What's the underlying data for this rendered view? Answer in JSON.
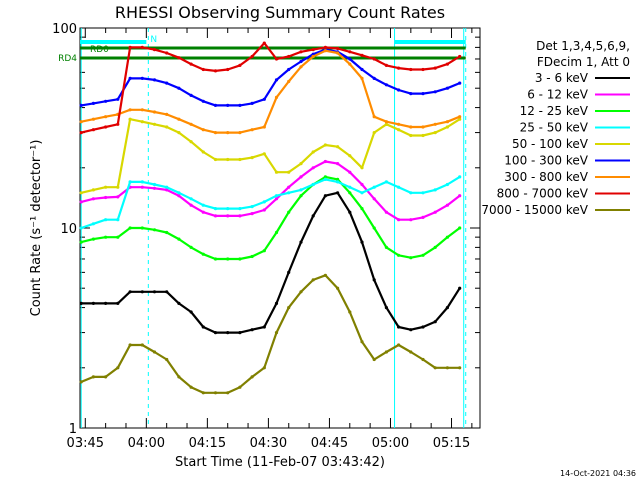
{
  "chart_data": {
    "type": "line",
    "title": "RHESSI Observing Summary Count Rates",
    "xlabel": "Start Time (11-Feb-07 03:43:42)",
    "ylabel": "Count Rate (s⁻¹ detector⁻¹)",
    "yscale": "log",
    "ylim": [
      1,
      100
    ],
    "xlim": [
      "03:43:42",
      "05:22:00"
    ],
    "x_ticks": [
      "03:45",
      "04:00",
      "04:15",
      "04:30",
      "04:45",
      "05:00",
      "05:15"
    ],
    "y_ticks": [
      "1",
      "10",
      "100"
    ],
    "grid": false,
    "legend_position": "right",
    "legend_header": [
      "Det 1,3,4,5,6,9,",
      "FDecim 1, Att 0"
    ],
    "timestamp": "14-Oct-2021 04:36",
    "x": [
      "03:44",
      "03:47",
      "03:50",
      "03:53",
      "03:56",
      "03:59",
      "04:02",
      "04:05",
      "04:08",
      "04:11",
      "04:14",
      "04:17",
      "04:20",
      "04:23",
      "04:26",
      "04:29",
      "04:32",
      "04:35",
      "04:38",
      "04:41",
      "04:44",
      "04:47",
      "04:50",
      "04:53",
      "04:56",
      "04:59",
      "05:02",
      "05:05",
      "05:08",
      "05:11",
      "05:14",
      "05:17"
    ],
    "series": [
      {
        "name": "3 - 6 keV",
        "color": "#000000",
        "values": [
          4.2,
          4.2,
          4.2,
          4.2,
          4.8,
          4.8,
          4.8,
          4.8,
          4.2,
          3.8,
          3.2,
          3.0,
          3.0,
          3.0,
          3.1,
          3.2,
          4.2,
          6.0,
          8.5,
          11.5,
          14.5,
          15.0,
          12.0,
          8.5,
          5.5,
          4.0,
          3.2,
          3.1,
          3.2,
          3.4,
          4.0,
          5.0
        ]
      },
      {
        "name": "6 - 12 keV",
        "color": "#ff00ff",
        "values": [
          13.5,
          14.0,
          14.2,
          14.3,
          16.0,
          16.0,
          15.8,
          15.5,
          14.5,
          13.0,
          12.0,
          11.5,
          11.5,
          11.5,
          11.8,
          12.3,
          14.0,
          16.0,
          18.0,
          20.0,
          21.5,
          21.0,
          19.0,
          16.5,
          14.0,
          12.0,
          11.0,
          11.0,
          11.3,
          12.0,
          13.0,
          14.5
        ]
      },
      {
        "name": "12 - 25 keV",
        "color": "#00ff00",
        "values": [
          8.5,
          8.8,
          9.0,
          9.0,
          10.0,
          10.0,
          9.8,
          9.5,
          8.8,
          8.0,
          7.4,
          7.0,
          7.0,
          7.0,
          7.2,
          7.7,
          9.5,
          12.0,
          14.5,
          16.5,
          18.0,
          17.5,
          15.0,
          12.5,
          10.0,
          8.0,
          7.3,
          7.1,
          7.3,
          8.0,
          9.0,
          10.0
        ]
      },
      {
        "name": "25 - 50 keV",
        "color": "#00ffff",
        "values": [
          10.0,
          10.5,
          11.0,
          11.0,
          17.0,
          17.0,
          16.5,
          16.0,
          15.0,
          14.0,
          13.0,
          12.5,
          12.5,
          12.5,
          12.8,
          13.5,
          14.5,
          15.0,
          15.5,
          16.5,
          17.5,
          17.0,
          16.0,
          15.0,
          16.0,
          17.0,
          16.0,
          15.0,
          15.0,
          15.5,
          16.5,
          18.0
        ]
      },
      {
        "name": "50 - 100 keV",
        "color": "#d8d800",
        "values": [
          15.0,
          15.5,
          16.0,
          16.0,
          35.0,
          34.0,
          33.0,
          32.0,
          30.0,
          27.0,
          24.0,
          22.0,
          22.0,
          22.0,
          22.5,
          23.5,
          19.0,
          19.0,
          21.0,
          24.0,
          26.0,
          25.5,
          23.0,
          20.0,
          30.0,
          33.0,
          31.0,
          29.0,
          29.0,
          30.0,
          32.0,
          35.0
        ]
      },
      {
        "name": "100 - 300 keV",
        "color": "#0000ff",
        "values": [
          41.0,
          42.0,
          43.0,
          44.0,
          56.0,
          56.0,
          55.0,
          53.0,
          50.0,
          46.0,
          43.0,
          41.0,
          41.0,
          41.0,
          42.0,
          44.0,
          55.0,
          62.0,
          68.0,
          74.0,
          78.0,
          76.0,
          70.0,
          62.0,
          56.0,
          52.0,
          49.0,
          47.0,
          47.0,
          48.0,
          50.0,
          53.0
        ]
      },
      {
        "name": "300 - 800 keV",
        "color": "#ff8c00",
        "values": [
          34.0,
          35.0,
          36.0,
          37.0,
          39.0,
          39.0,
          38.0,
          37.0,
          35.0,
          33.0,
          31.0,
          30.0,
          30.0,
          30.0,
          31.0,
          32.0,
          45.0,
          54.0,
          64.0,
          72.0,
          77.0,
          75.0,
          66.0,
          56.0,
          36.0,
          34.0,
          33.0,
          32.0,
          32.0,
          33.0,
          34.0,
          36.0
        ]
      },
      {
        "name": "800 - 7000 keV",
        "color": "#e00000",
        "values": [
          30.0,
          31.0,
          32.0,
          33.0,
          80.0,
          80.0,
          78.0,
          75.0,
          71.0,
          66.0,
          62.0,
          61.0,
          62.0,
          65.0,
          72.0,
          84.0,
          70.0,
          72.0,
          76.0,
          78.0,
          80.0,
          79.0,
          76.0,
          73.0,
          70.0,
          65.0,
          63.0,
          62.0,
          62.0,
          63.0,
          66.0,
          72.0
        ]
      },
      {
        "name": "7000 - 15000 keV",
        "color": "#808000",
        "values": [
          1.7,
          1.8,
          1.8,
          2.0,
          2.6,
          2.6,
          2.4,
          2.2,
          1.8,
          1.6,
          1.5,
          1.5,
          1.5,
          1.6,
          1.8,
          2.0,
          3.0,
          4.0,
          4.8,
          5.5,
          5.8,
          5.0,
          3.8,
          2.7,
          2.2,
          2.4,
          2.6,
          2.4,
          2.2,
          2.0,
          2.0,
          2.0
        ]
      }
    ],
    "markers": [
      {
        "label": "RD0",
        "color": "#008000"
      },
      {
        "label": "RD4",
        "color": "#008000"
      },
      {
        "label": "N",
        "color": "#00ffff"
      }
    ]
  }
}
